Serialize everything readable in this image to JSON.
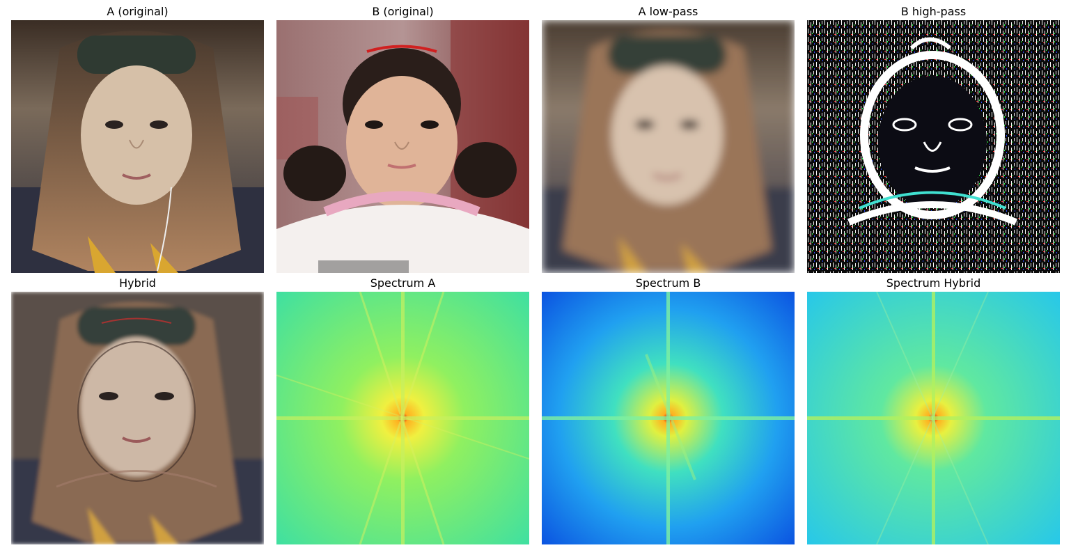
{
  "figure": {
    "panels": [
      {
        "id": "a-original",
        "title": "A (original)"
      },
      {
        "id": "b-original",
        "title": "B (original)"
      },
      {
        "id": "a-lowpass",
        "title": "A low-pass"
      },
      {
        "id": "b-highpass",
        "title": "B high-pass"
      },
      {
        "id": "hybrid",
        "title": "Hybrid"
      },
      {
        "id": "spectrum-a",
        "title": "Spectrum A"
      },
      {
        "id": "spectrum-b",
        "title": "Spectrum B"
      },
      {
        "id": "spectrum-hybrid",
        "title": "Spectrum Hybrid"
      }
    ]
  },
  "colors": {
    "background": "#ffffff",
    "title_text": "#000000",
    "spectrum_a_base": "#5ee87e",
    "spectrum_b_base": "#1e7bf0",
    "spectrum_hybrid_base": "#30d2e0",
    "spectrum_peak": "#d01010"
  }
}
